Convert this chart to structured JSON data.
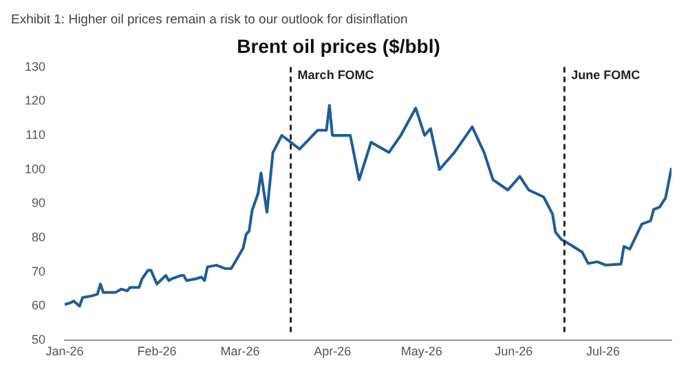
{
  "chart_data": {
    "type": "line",
    "title": "Exhibit 1: Higher oil prices remain a risk to our outlook for disinflation",
    "subtitle": "Brent oil prices ($/bbl)",
    "x": [
      "2026-01-01",
      "2026-01-03",
      "2026-01-04",
      "2026-01-06",
      "2026-01-07",
      "2026-01-10",
      "2026-01-12",
      "2026-01-13",
      "2026-01-14",
      "2026-01-18",
      "2026-01-20",
      "2026-01-22",
      "2026-01-23",
      "2026-01-26",
      "2026-01-27",
      "2026-01-29",
      "2026-01-30",
      "2026-02-01",
      "2026-02-04",
      "2026-02-05",
      "2026-02-06",
      "2026-02-09",
      "2026-02-10",
      "2026-02-11",
      "2026-02-14",
      "2026-02-16",
      "2026-02-17",
      "2026-02-18",
      "2026-02-21",
      "2026-02-24",
      "2026-02-26",
      "2026-02-28",
      "2026-03-02",
      "2026-03-03",
      "2026-03-04",
      "2026-03-05",
      "2026-03-07",
      "2026-03-08",
      "2026-03-10",
      "2026-03-12",
      "2026-03-15",
      "2026-03-21",
      "2026-03-27",
      "2026-03-30",
      "2026-03-31",
      "2026-04-01",
      "2026-04-07",
      "2026-04-10",
      "2026-04-14",
      "2026-04-20",
      "2026-04-24",
      "2026-04-29",
      "2026-05-02",
      "2026-05-04",
      "2026-05-07",
      "2026-05-12",
      "2026-05-18",
      "2026-05-22",
      "2026-05-25",
      "2026-05-30",
      "2026-06-03",
      "2026-06-06",
      "2026-06-11",
      "2026-06-14",
      "2026-06-15",
      "2026-06-17",
      "2026-06-20",
      "2026-06-24",
      "2026-06-26",
      "2026-06-29",
      "2026-07-02",
      "2026-07-07",
      "2026-07-08",
      "2026-07-10",
      "2026-07-14",
      "2026-07-17",
      "2026-07-18",
      "2026-07-20",
      "2026-07-22",
      "2026-07-24"
    ],
    "series": [
      {
        "color": "#1f5c99",
        "values": [
          60.5,
          61,
          61.5,
          60,
          62.5,
          63,
          63.5,
          66.5,
          64,
          64,
          65,
          64.5,
          65.5,
          65.5,
          68,
          70.5,
          70.5,
          66.5,
          69,
          67.5,
          68,
          69,
          69,
          67.5,
          68,
          68.5,
          67.5,
          71.5,
          72,
          71,
          71,
          74,
          77,
          81,
          82,
          88,
          93,
          99,
          87.5,
          105,
          110,
          106,
          111.5,
          111.5,
          118.8,
          110,
          110,
          97,
          108,
          105,
          110,
          118,
          110,
          112,
          100,
          105,
          112.5,
          105,
          97,
          94,
          98,
          94,
          92,
          87,
          81.7,
          79.5,
          78,
          75.8,
          72.5,
          73,
          72,
          72.3,
          77.5,
          76.7,
          84,
          85,
          88.3,
          89,
          91.7,
          100.5
        ]
      }
    ],
    "xlim": [
      "2026-01-01",
      "2026-07-24"
    ],
    "xticks": [
      {
        "value": "2026-01-01",
        "label": "Jan-26"
      },
      {
        "value": "2026-02-01",
        "label": "Feb-26"
      },
      {
        "value": "2026-03-01",
        "label": "Mar-26"
      },
      {
        "value": "2026-04-01",
        "label": "Apr-26"
      },
      {
        "value": "2026-05-01",
        "label": "May-26"
      },
      {
        "value": "2026-06-01",
        "label": "Jun-26"
      },
      {
        "value": "2026-07-01",
        "label": "Jul-26"
      }
    ],
    "ylim": [
      50,
      130
    ],
    "yticks": [
      50,
      60,
      70,
      80,
      90,
      100,
      110,
      120,
      130
    ],
    "ref_lines": [
      {
        "axis": "x",
        "value": "2026-03-18",
        "label": "March FOMC",
        "color": "#222222",
        "line_style": "dashed"
      },
      {
        "axis": "x",
        "value": "2026-06-18",
        "label": "June FOMC",
        "color": "#222222",
        "line_style": "dashed"
      }
    ],
    "grid": false,
    "legend": false,
    "marker": "none",
    "line_style": "solid"
  }
}
